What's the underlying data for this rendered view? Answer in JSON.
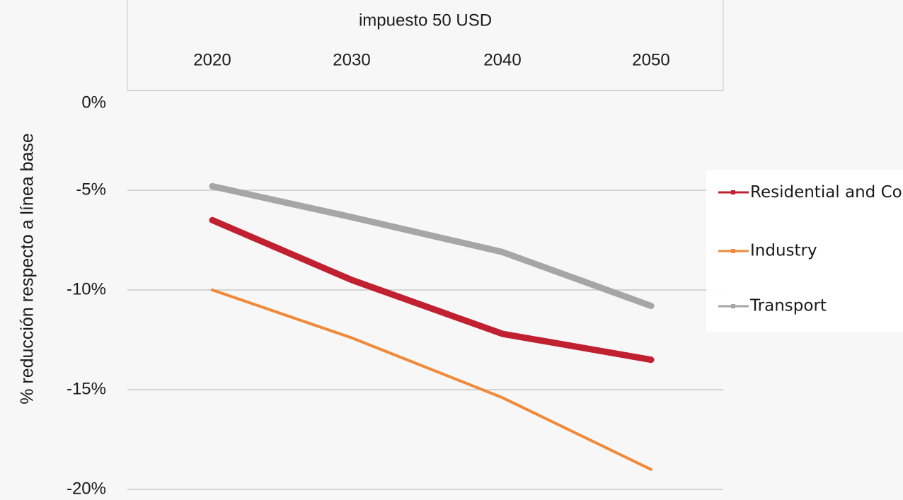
{
  "chart_data": {
    "type": "line",
    "title": "impuesto 50 USD",
    "y_label": "% reducción respecto a línea base",
    "categories": [
      "2020",
      "2030",
      "2040",
      "2050"
    ],
    "series": [
      {
        "name": "Residential and Commercial",
        "color": "#c0202f",
        "values": [
          -6.5,
          -9.5,
          -12.2,
          -13.5
        ]
      },
      {
        "name": "Industry",
        "color": "#f08a3a",
        "values": [
          -10.0,
          -12.4,
          -15.4,
          -19.0
        ]
      },
      {
        "name": "Transport",
        "color": "#a6a6a6",
        "values": [
          -4.8,
          -6.35,
          -8.1,
          -10.8
        ]
      }
    ],
    "ylim": [
      -20,
      0
    ],
    "yticks": [
      {
        "value": 0,
        "label": "0%"
      },
      {
        "value": -5,
        "label": "-5%"
      },
      {
        "value": -10,
        "label": "-10%"
      },
      {
        "value": -15,
        "label": "-15%"
      },
      {
        "value": -20,
        "label": "-20%"
      }
    ],
    "grid": true,
    "legend": "right"
  }
}
